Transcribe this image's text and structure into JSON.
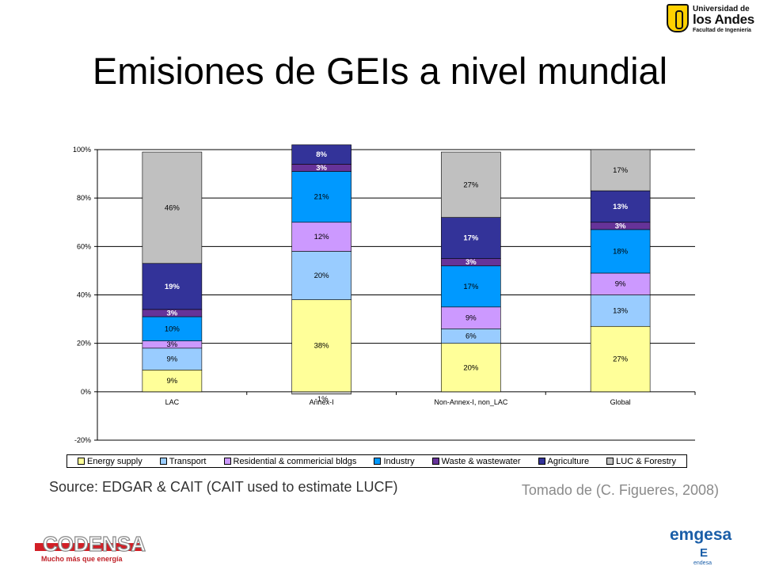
{
  "slide": {
    "title": "Emisiones de GEIs a nivel mundial",
    "source": "Source:  EDGAR & CAIT (CAIT used to estimate LUCF)",
    "credit": "Tomado de (C. Figueres, 2008)"
  },
  "logos": {
    "university": {
      "line1": "Universidad de",
      "line2": "los Andes",
      "line3": "Facultad de Ingeniería"
    },
    "codensa": {
      "name": "CODENSA",
      "slogan": "Mucho más que energía"
    },
    "emgesa": {
      "name": "emgesa",
      "mark": "E",
      "sub": "endesa"
    }
  },
  "chart_data": {
    "type": "bar",
    "stacked": true,
    "categories": [
      "LAC",
      "Annex-I",
      "Non-Annex-I, non_LAC",
      "Global"
    ],
    "ylim": [
      -20,
      100
    ],
    "yticks": [
      -20,
      0,
      20,
      40,
      60,
      80,
      100
    ],
    "ytick_labels": [
      "-20%",
      "0%",
      "20%",
      "40%",
      "60%",
      "80%",
      "100%"
    ],
    "grid": true,
    "legend_position": "bottom",
    "series": [
      {
        "name": "Energy supply",
        "color": "#ffff99",
        "values": [
          9,
          38,
          20,
          27
        ],
        "labels": [
          "9%",
          "38%",
          "20%",
          "27%"
        ]
      },
      {
        "name": "Transport",
        "color": "#99ccff",
        "values": [
          9,
          20,
          6,
          13
        ],
        "labels": [
          "9%",
          "20%",
          "6%",
          "13%"
        ]
      },
      {
        "name": "Residential & commericial bldgs",
        "color": "#cc99ff",
        "values": [
          3,
          12,
          9,
          9
        ],
        "labels": [
          "3%",
          "12%",
          "9%",
          "9%"
        ]
      },
      {
        "name": "Industry",
        "color": "#0099ff",
        "values": [
          10,
          21,
          17,
          18
        ],
        "labels": [
          "10%",
          "21%",
          "17%",
          "18%"
        ]
      },
      {
        "name": "Waste & wastewater",
        "color": "#663399",
        "values": [
          3,
          3,
          3,
          3
        ],
        "labels": [
          "3%",
          "3%",
          "3%",
          "3%"
        ]
      },
      {
        "name": "Agriculture",
        "color": "#333399",
        "values": [
          19,
          8,
          17,
          13
        ],
        "labels": [
          "19%",
          "8%",
          "17%",
          "13%"
        ]
      },
      {
        "name": "LUC & Forestry",
        "color": "#c0c0c0",
        "values": [
          46,
          -1,
          27,
          17
        ],
        "labels": [
          "46%",
          "-1%",
          "27%",
          "17%"
        ]
      }
    ]
  }
}
